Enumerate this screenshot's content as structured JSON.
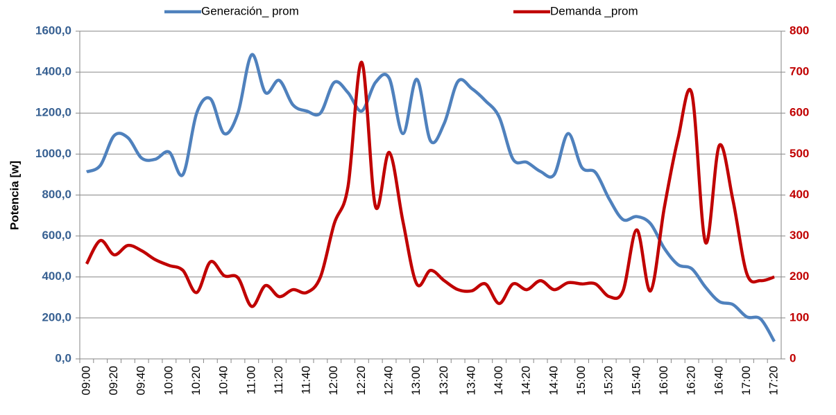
{
  "chart_data": {
    "type": "line",
    "ylabel": "Potencia  [w]",
    "legend": "top",
    "grid": true,
    "categories": [
      "09:00",
      null,
      "09:20",
      null,
      "09:40",
      null,
      "10:00",
      null,
      "10:20",
      null,
      "10:40",
      null,
      "11:00",
      null,
      "11:20",
      null,
      "11:40",
      null,
      "12:00",
      null,
      "12:20",
      null,
      "12:40",
      null,
      "13:00",
      null,
      "13:20",
      null,
      "13:40",
      null,
      "14:00",
      null,
      "14:20",
      null,
      "14:40",
      null,
      "15:00",
      null,
      "15:20",
      null,
      "15:40",
      null,
      "16:00",
      null,
      "16:20",
      null,
      "16:40",
      null,
      "17:00",
      null,
      "17:20"
    ],
    "series": [
      {
        "name": "Generación_ prom",
        "color": "#4f81bd",
        "values": [
          913,
          945,
          1090,
          1080,
          980,
          975,
          1010,
          900,
          1200,
          1270,
          1100,
          1200,
          1485,
          1300,
          1360,
          1240,
          1210,
          1200,
          1350,
          1300,
          1210,
          1350,
          1370,
          1100,
          1365,
          1065,
          1150,
          1355,
          1320,
          1260,
          1180,
          975,
          960,
          915,
          900,
          1100,
          935,
          910,
          780,
          680,
          695,
          660,
          540,
          460,
          440,
          350,
          280,
          265,
          205,
          195,
          85
        ]
      },
      {
        "name": "Demanda _prom",
        "color": "#c00000",
        "axis": "y2",
        "values": [
          232,
          289,
          254,
          277,
          264,
          242,
          228,
          216,
          162,
          237,
          203,
          198,
          128,
          179,
          152,
          169,
          162,
          200,
          330,
          420,
          724,
          372,
          504,
          335,
          183,
          216,
          191,
          169,
          166,
          183,
          135,
          183,
          169,
          191,
          169,
          186,
          183,
          183,
          152,
          166,
          315,
          166,
          369,
          538,
          648,
          284,
          521,
          386,
          208,
          191,
          200
        ]
      }
    ],
    "ylim": [
      0,
      1600
    ],
    "yticks": [
      {
        "value": 0,
        "label": "0,0"
      },
      {
        "value": 200,
        "label": "200,0"
      },
      {
        "value": 400,
        "label": "400,0"
      },
      {
        "value": 600,
        "label": "600,0"
      },
      {
        "value": 800,
        "label": "800,0"
      },
      {
        "value": 1000,
        "label": "1000,0"
      },
      {
        "value": 1200,
        "label": "1200,0"
      },
      {
        "value": 1400,
        "label": "1400,0"
      },
      {
        "value": 1600,
        "label": "1600,0"
      }
    ],
    "y2lim": [
      0,
      800
    ],
    "y2ticks": [
      0,
      100,
      200,
      300,
      400,
      500,
      600,
      700,
      800
    ]
  }
}
